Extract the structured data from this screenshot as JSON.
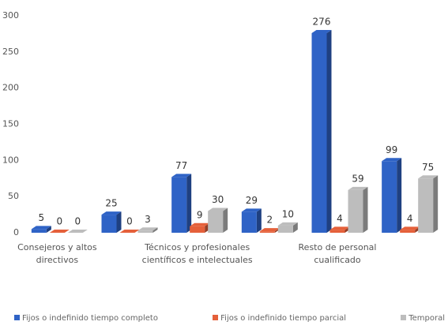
{
  "chart_data": {
    "type": "bar3d",
    "categories": [
      "Consejeros y altos directivos",
      null,
      "Técnicos y profesionales científicos e intelectuales",
      null,
      "Resto de personal cualificado",
      null
    ],
    "series": [
      {
        "name": "Fijos o indefinido tiempo completo",
        "color": "#2f63c6",
        "values": [
          5,
          25,
          77,
          29,
          276,
          99
        ]
      },
      {
        "name": "Fijos o indefinido tiempo parcial",
        "color": "#e5603a",
        "values": [
          0,
          0,
          9,
          2,
          4,
          4
        ]
      },
      {
        "name": "Temporal",
        "color": "#bdbdbd",
        "values": [
          0,
          3,
          30,
          10,
          59,
          75
        ]
      }
    ],
    "ylim": [
      0,
      300
    ],
    "yticks": [
      0,
      50,
      100,
      150,
      200,
      250,
      300
    ],
    "grid": false,
    "legend": "bottom"
  }
}
